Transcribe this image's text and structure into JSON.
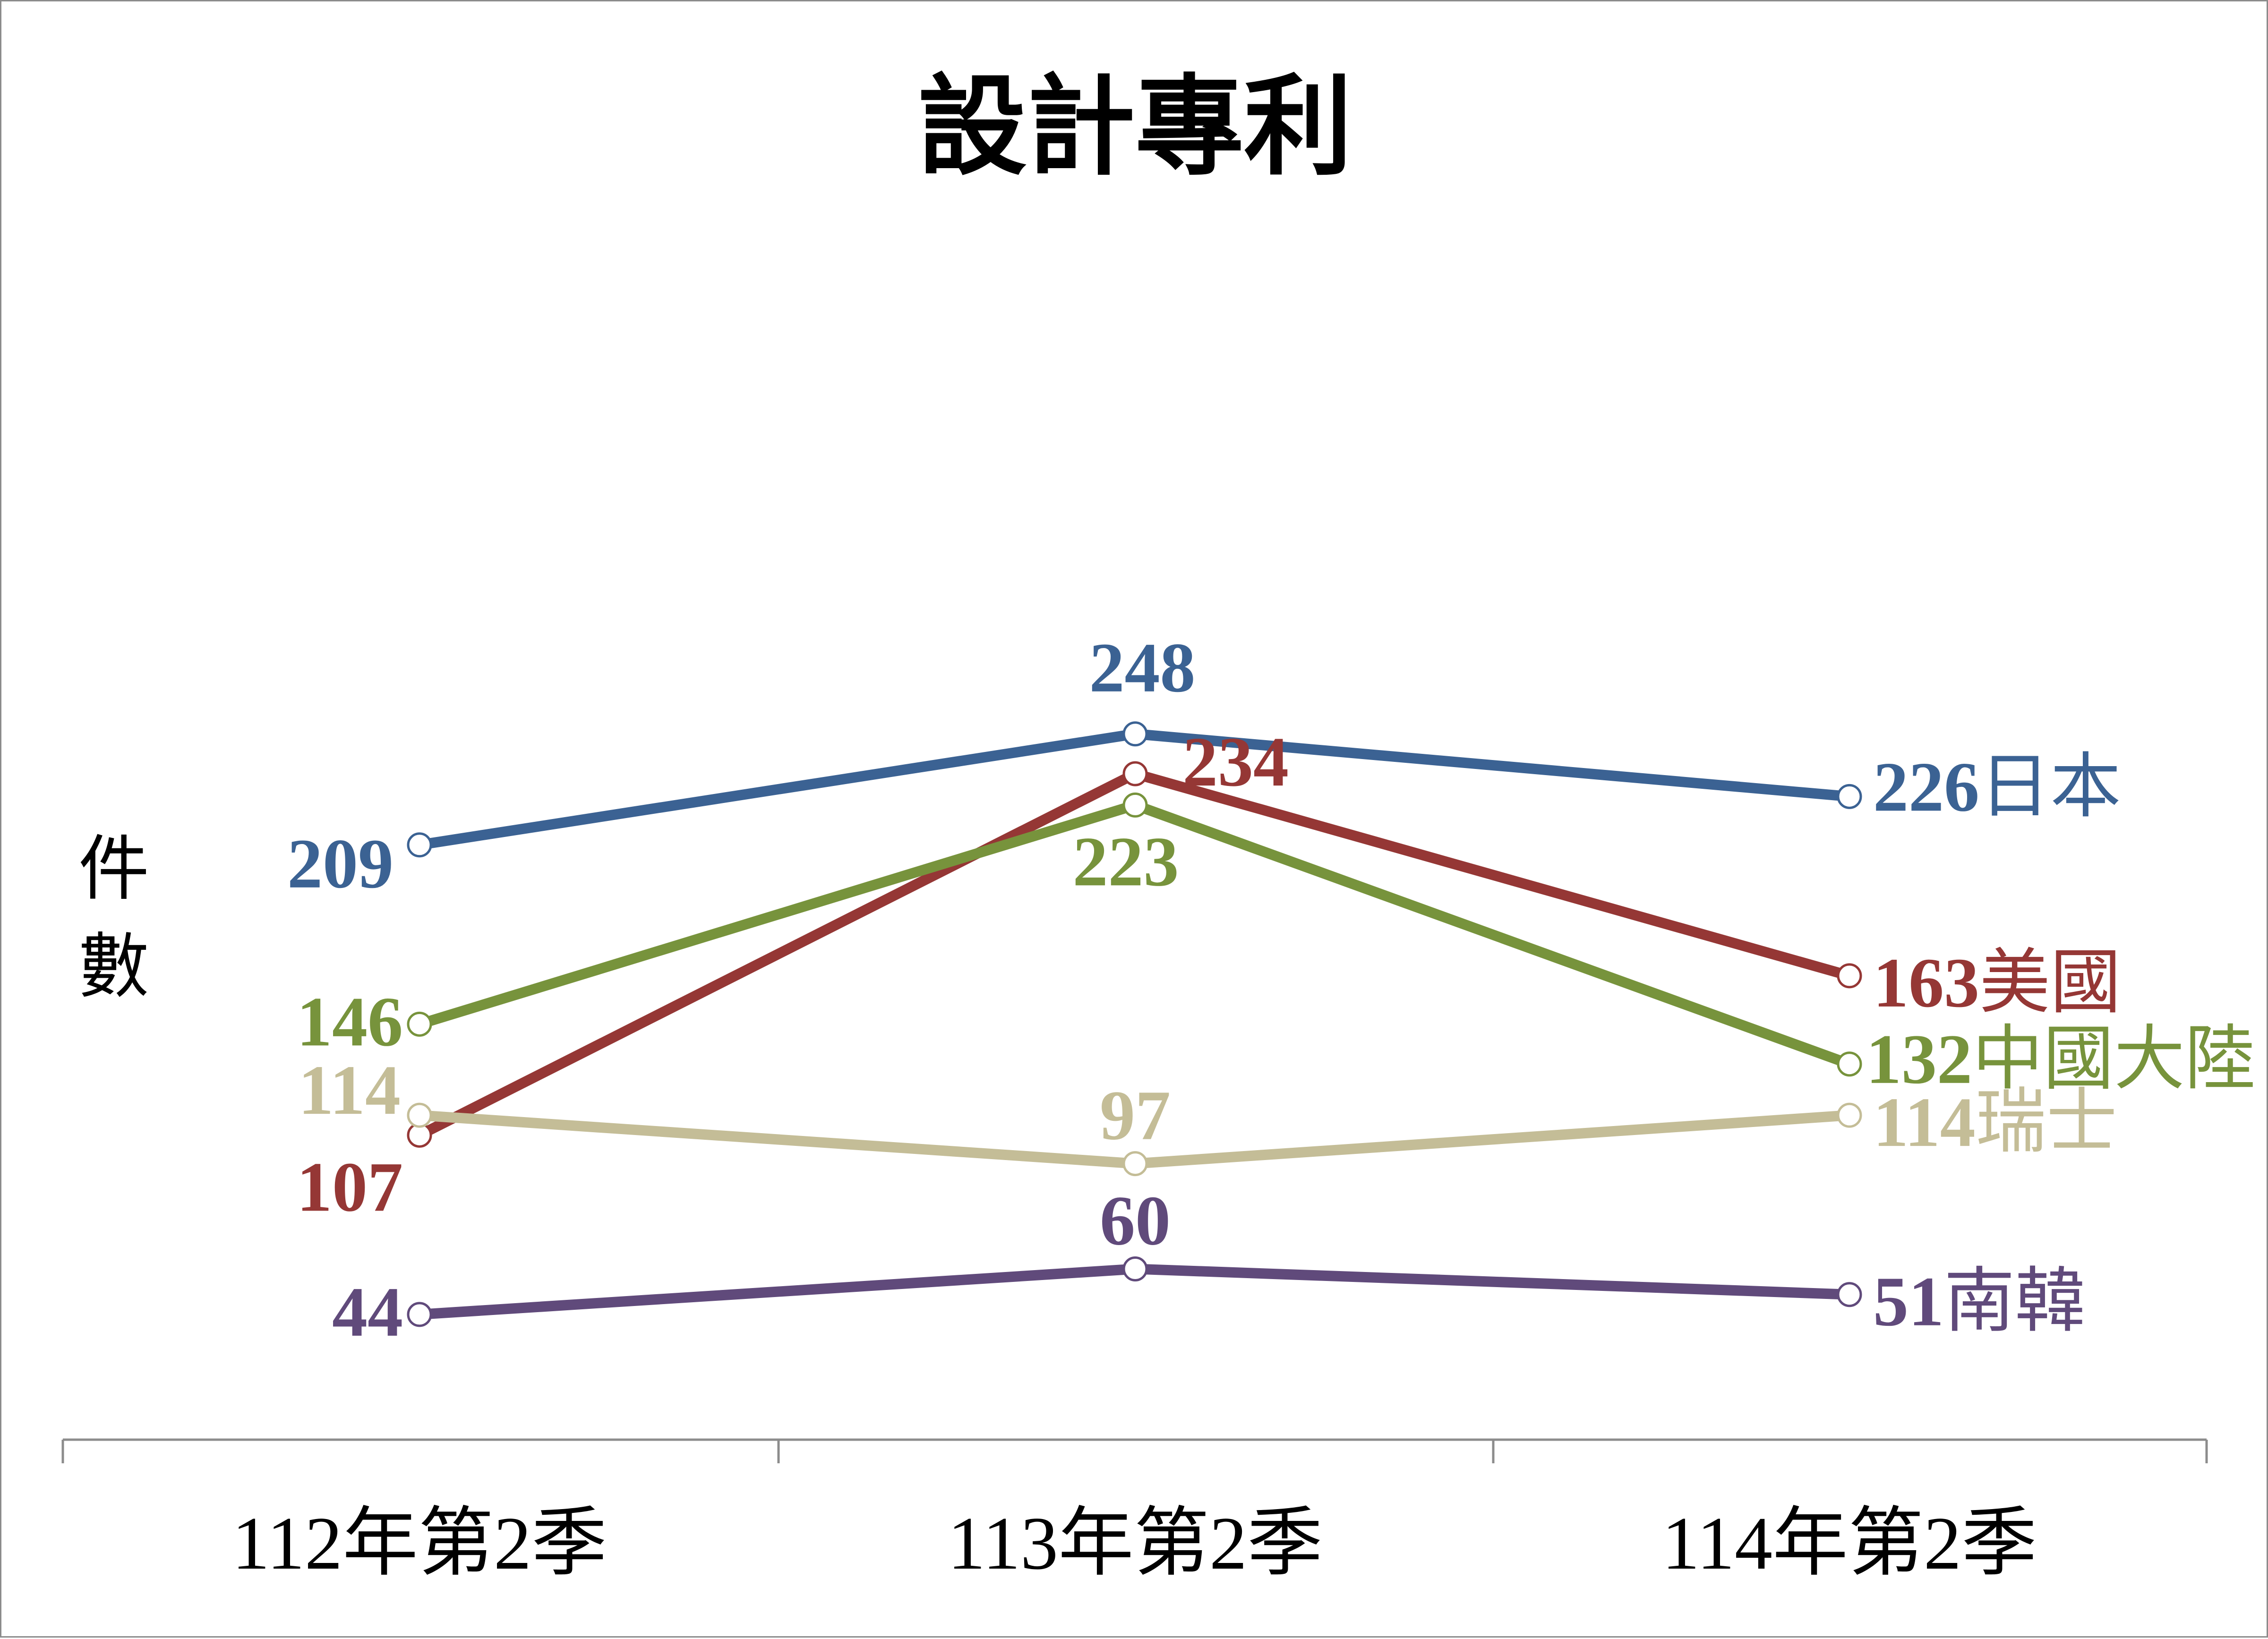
{
  "chart_data": {
    "type": "line",
    "title": "設計專利",
    "ylabel": "件數",
    "xlabel": "",
    "categories": [
      "112年第2季",
      "113年第2季",
      "114年第2季"
    ],
    "ylim": [
      0,
      290
    ],
    "grid": false,
    "legend": "none",
    "series": [
      {
        "name": "日本",
        "color": "#3B6293",
        "values": [
          209,
          248,
          226
        ]
      },
      {
        "name": "美國",
        "color": "#953735",
        "values": [
          107,
          234,
          163
        ]
      },
      {
        "name": "中國大陸",
        "color": "#77933C",
        "values": [
          146,
          223,
          132
        ]
      },
      {
        "name": "瑞士",
        "color": "#C4BD97",
        "values": [
          114,
          97,
          114
        ]
      },
      {
        "name": "南韓",
        "color": "#604A7B",
        "values": [
          44,
          60,
          51
        ]
      }
    ]
  }
}
